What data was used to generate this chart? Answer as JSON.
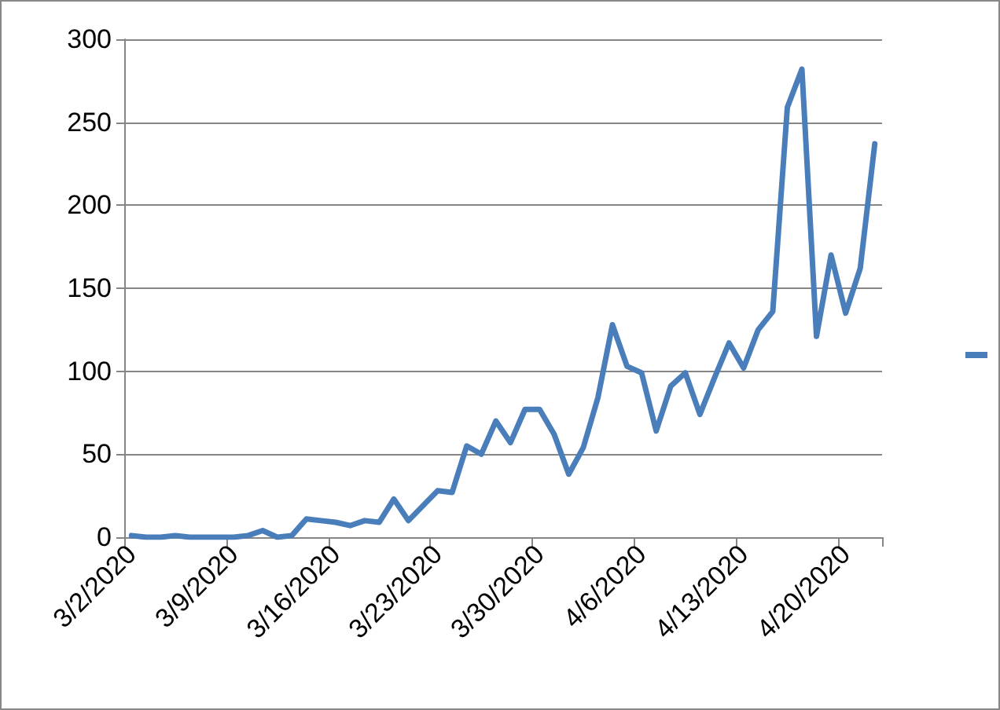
{
  "chart_data": {
    "type": "line",
    "categories": [
      "3/2/2020",
      null,
      null,
      null,
      null,
      null,
      null,
      "3/9/2020",
      null,
      null,
      null,
      null,
      null,
      null,
      "3/16/2020",
      null,
      null,
      null,
      null,
      null,
      null,
      "3/23/2020",
      null,
      null,
      null,
      null,
      null,
      null,
      "3/30/2020",
      null,
      null,
      null,
      null,
      null,
      null,
      "4/6/2020",
      null,
      null,
      null,
      null,
      null,
      null,
      "4/13/2020",
      null,
      null,
      null,
      null,
      null,
      null,
      "4/20/2020",
      null,
      null
    ],
    "series": [
      {
        "color": "#4a7ebb",
        "values": [
          1,
          0,
          0,
          1,
          0,
          0,
          0,
          0,
          1,
          4,
          0,
          1,
          11,
          10,
          9,
          7,
          10,
          9,
          23,
          10,
          19,
          28,
          27,
          55,
          50,
          70,
          57,
          77,
          77,
          62,
          38,
          54,
          84,
          128,
          103,
          99,
          64,
          91,
          99,
          74,
          96,
          117,
          102,
          125,
          136,
          259,
          282,
          121,
          170,
          135,
          162,
          237
        ]
      }
    ],
    "ylim": [
      0,
      300
    ],
    "yticks": [
      0,
      50,
      100,
      150,
      200,
      250,
      300
    ],
    "grid": "y",
    "marker": "none",
    "line_style": "solid"
  }
}
